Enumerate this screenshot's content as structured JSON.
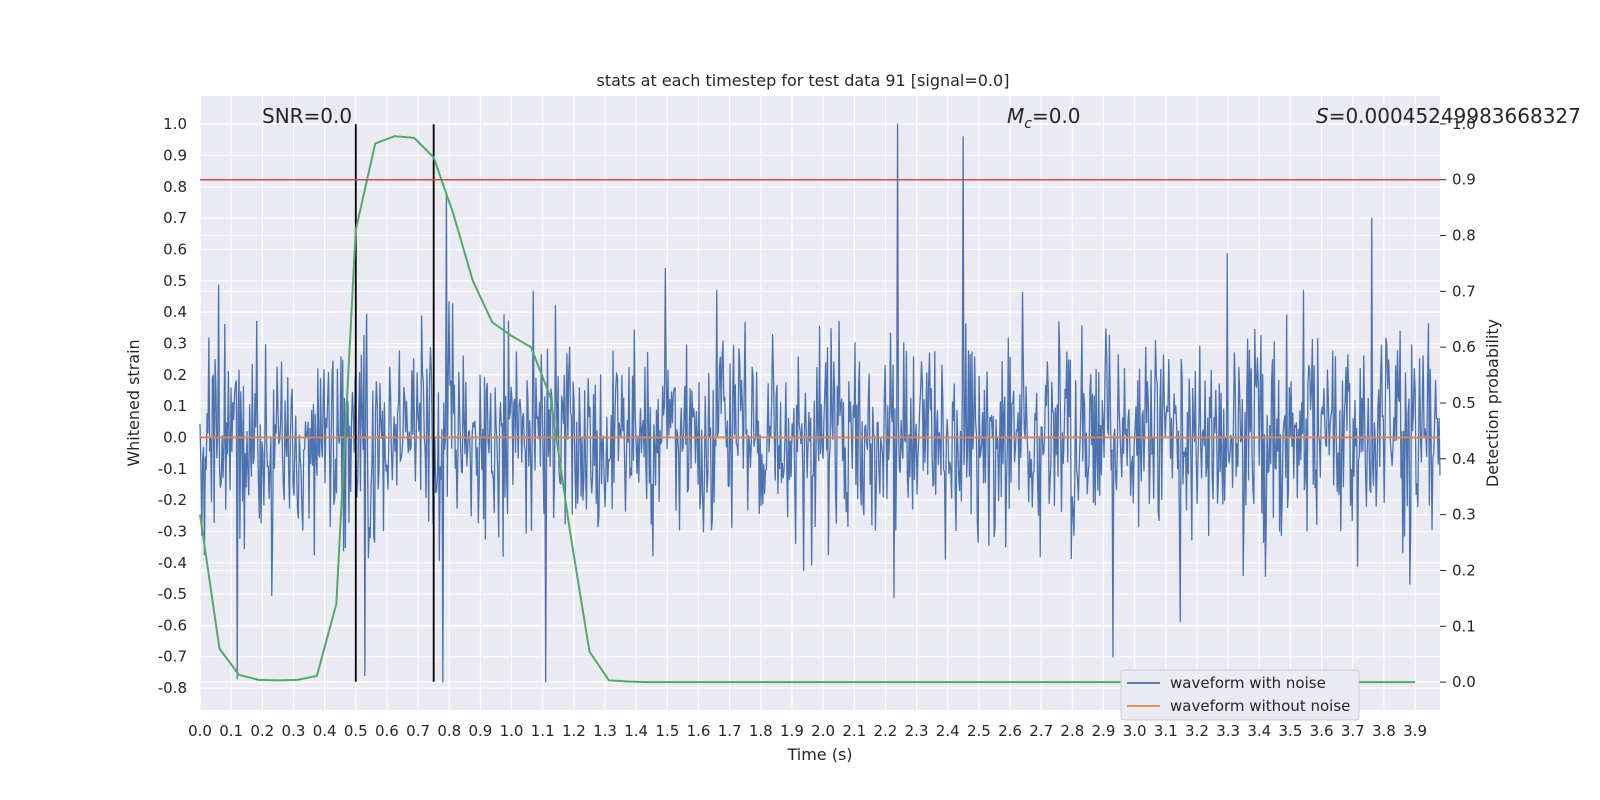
{
  "chart_data": {
    "type": "line",
    "title": "stats at each timestep for test data 91 [signal=0.0]",
    "xlabel": "Time (s)",
    "ylabel": "Whitened strain",
    "ylabel_right": "Detection probability",
    "xlim": [
      0.0,
      3.98
    ],
    "ylim": [
      -0.87,
      1.09
    ],
    "ylim_right": [
      -0.05,
      1.05
    ],
    "x_ticks": [
      0.0,
      0.1,
      0.2,
      0.3,
      0.4,
      0.5,
      0.6,
      0.7,
      0.8,
      0.9,
      1.0,
      1.1,
      1.2,
      1.3,
      1.4,
      1.5,
      1.6,
      1.7,
      1.8,
      1.9,
      2.0,
      2.1,
      2.2,
      2.3,
      2.4,
      2.5,
      2.6,
      2.7,
      2.8,
      2.9,
      3.0,
      3.1,
      3.2,
      3.3,
      3.4,
      3.5,
      3.6,
      3.7,
      3.8,
      3.9
    ],
    "x_tick_labels": [
      "0.0",
      "0.1",
      "0.2",
      "0.3",
      "0.4",
      "0.5",
      "0.6",
      "0.7",
      "0.8",
      "0.9",
      "1.0",
      "1.1",
      "1.2",
      "1.3",
      "1.4",
      "1.5",
      "1.6",
      "1.7",
      "1.8",
      "1.9",
      "2.0",
      "2.1",
      "2.2",
      "2.3",
      "2.4",
      "2.5",
      "2.6",
      "2.7",
      "2.8",
      "2.9",
      "3.0",
      "3.1",
      "3.2",
      "3.3",
      "3.4",
      "3.5",
      "3.6",
      "3.7",
      "3.8",
      "3.9"
    ],
    "y_ticks": [
      1.0,
      0.9,
      0.8,
      0.7,
      0.6,
      0.5,
      0.4,
      0.3,
      0.2,
      0.1,
      0.0,
      -0.1,
      -0.2,
      -0.3,
      -0.4,
      -0.5,
      -0.6,
      -0.7,
      -0.8
    ],
    "y_tick_labels": [
      "1.0",
      "0.9",
      "0.8",
      "0.7",
      "0.6",
      "0.5",
      "0.4",
      "0.3",
      "0.2",
      "0.1",
      "0.0",
      "-0.1",
      "-0.2",
      "-0.3",
      "-0.4",
      "-0.5",
      "-0.6",
      "-0.7",
      "-0.8"
    ],
    "y_ticks_right": [
      1.0,
      0.9,
      0.8,
      0.7,
      0.6,
      0.5,
      0.4,
      0.3,
      0.2,
      0.1,
      0.0
    ],
    "y_tick_labels_right": [
      "1.0",
      "0.9",
      "0.8",
      "0.7",
      "0.6",
      "0.5",
      "0.4",
      "0.3",
      "0.2",
      "0.1",
      "0.0"
    ],
    "grid": true,
    "annotations": {
      "snr": "SNR=0.0",
      "mc_symbol": "M",
      "mc_sub": "c",
      "mc_value": "=0.0",
      "s_symbol": "S",
      "s_value": "=0.00045249983668327"
    },
    "vertical_lines_x": [
      0.5,
      0.75
    ],
    "vertical_lines_ymax": 1.0,
    "vertical_lines_ymin": -0.78,
    "threshold_right": 0.9,
    "series": [
      {
        "name": "waveform with noise",
        "color": "#4c72b0",
        "kind": "noise",
        "seed": 91,
        "n_points": 1400,
        "std": 0.17,
        "spikes": [
          [
            2.24,
            1.0
          ],
          [
            2.45,
            0.96
          ],
          [
            0.79,
            0.78
          ],
          [
            0.78,
            -0.78
          ],
          [
            1.11,
            -0.78
          ],
          [
            0.53,
            -0.76
          ],
          [
            2.93,
            -0.7
          ],
          [
            3.76,
            0.7
          ],
          [
            0.12,
            -0.77
          ]
        ]
      },
      {
        "name": "waveform without noise",
        "color": "#dd8452",
        "kind": "flat",
        "value": 0.0
      },
      {
        "name": "Detection probability",
        "color": "#55a868",
        "axis": "right",
        "x": [
          0.0,
          0.0625,
          0.125,
          0.1875,
          0.25,
          0.3125,
          0.375,
          0.4375,
          0.5,
          0.5625,
          0.625,
          0.6875,
          0.75,
          0.8125,
          0.875,
          0.9375,
          1.0,
          1.0625,
          1.125,
          1.1875,
          1.25,
          1.3125,
          1.375,
          1.4375,
          3.9
        ],
        "values": [
          0.3,
          0.06,
          0.013,
          0.004,
          0.003,
          0.004,
          0.011,
          0.14,
          0.81,
          0.965,
          0.978,
          0.975,
          0.94,
          0.84,
          0.72,
          0.645,
          0.62,
          0.6,
          0.51,
          0.27,
          0.055,
          0.003,
          0.001,
          0.0,
          0.0
        ]
      }
    ],
    "legend": {
      "placement": "lower right",
      "entries": [
        "waveform with noise",
        "waveform without noise"
      ]
    }
  }
}
